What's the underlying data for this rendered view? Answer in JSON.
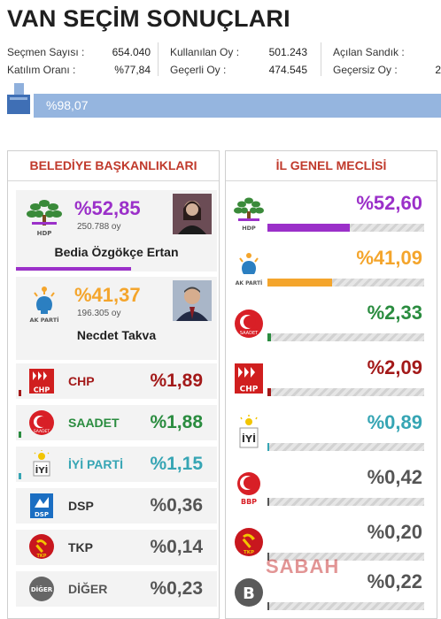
{
  "title": "VAN SEÇİM SONUÇLARI",
  "stats": {
    "secmen_label": "Seçmen Sayısı :",
    "secmen_value": "654.040",
    "katilim_label": "Katılım Oranı :",
    "katilim_value": "%77,84",
    "kullanilan_label": "Kullanılan Oy :",
    "kullanilan_value": "501.243",
    "gecerli_label": "Geçerli Oy :",
    "gecerli_value": "474.545",
    "acilan_label": "Açılan Sandık :",
    "acilan_value": "",
    "gecersiz_label": "Geçersiz Oy :",
    "gecersiz_value": "2"
  },
  "progress": {
    "text": "%98,07",
    "fraction": 0.9807
  },
  "left_panel": {
    "title": "BELEDİYE BAŞKANLIKLARI",
    "top_candidates": [
      {
        "party": "HDP",
        "pct": "%52,85",
        "votes": "250.788 oy",
        "candidate": "Bedia Özgökçe Ertan",
        "color": "#9b30c9"
      },
      {
        "party": "AK PARTİ",
        "pct": "%41,37",
        "votes": "196.305 oy",
        "candidate": "Necdet Takva",
        "color": "#f4a52c"
      }
    ],
    "rows": [
      {
        "name": "CHP",
        "pct": "%1,89",
        "color": "#a31919"
      },
      {
        "name": "SAADET",
        "pct": "%1,88",
        "color": "#2a8c3f"
      },
      {
        "name": "İYİ PARTİ",
        "pct": "%1,15",
        "color": "#36a5b4"
      },
      {
        "name": "DSP",
        "pct": "%0,36",
        "color": "#555555"
      },
      {
        "name": "TKP",
        "pct": "%0,14",
        "color": "#555555"
      },
      {
        "name": "DİĞER",
        "pct": "%0,23",
        "color": "#555555"
      }
    ]
  },
  "right_panel": {
    "title": "İL GENEL MECLİSİ",
    "rows": [
      {
        "party": "HDP",
        "pct": "%52,60",
        "value": 52.6,
        "color": "#9b30c9"
      },
      {
        "party": "AK PARTİ",
        "pct": "%41,09",
        "value": 41.09,
        "color": "#f4a52c"
      },
      {
        "party": "SAADET",
        "pct": "%2,33",
        "value": 2.33,
        "color": "#2a8c3f"
      },
      {
        "party": "CHP",
        "pct": "%2,09",
        "value": 2.09,
        "color": "#a31919"
      },
      {
        "party": "İYİ",
        "pct": "%0,89",
        "value": 0.89,
        "color": "#36a5b4"
      },
      {
        "party": "BBP",
        "pct": "%0,42",
        "value": 0.42,
        "color": "#555555"
      },
      {
        "party": "TKP",
        "pct": "%0,20",
        "value": 0.2,
        "color": "#555555"
      },
      {
        "party": "B",
        "pct": "%0,22",
        "value": 0.22,
        "color": "#555555"
      }
    ]
  },
  "watermark": "SABAH"
}
